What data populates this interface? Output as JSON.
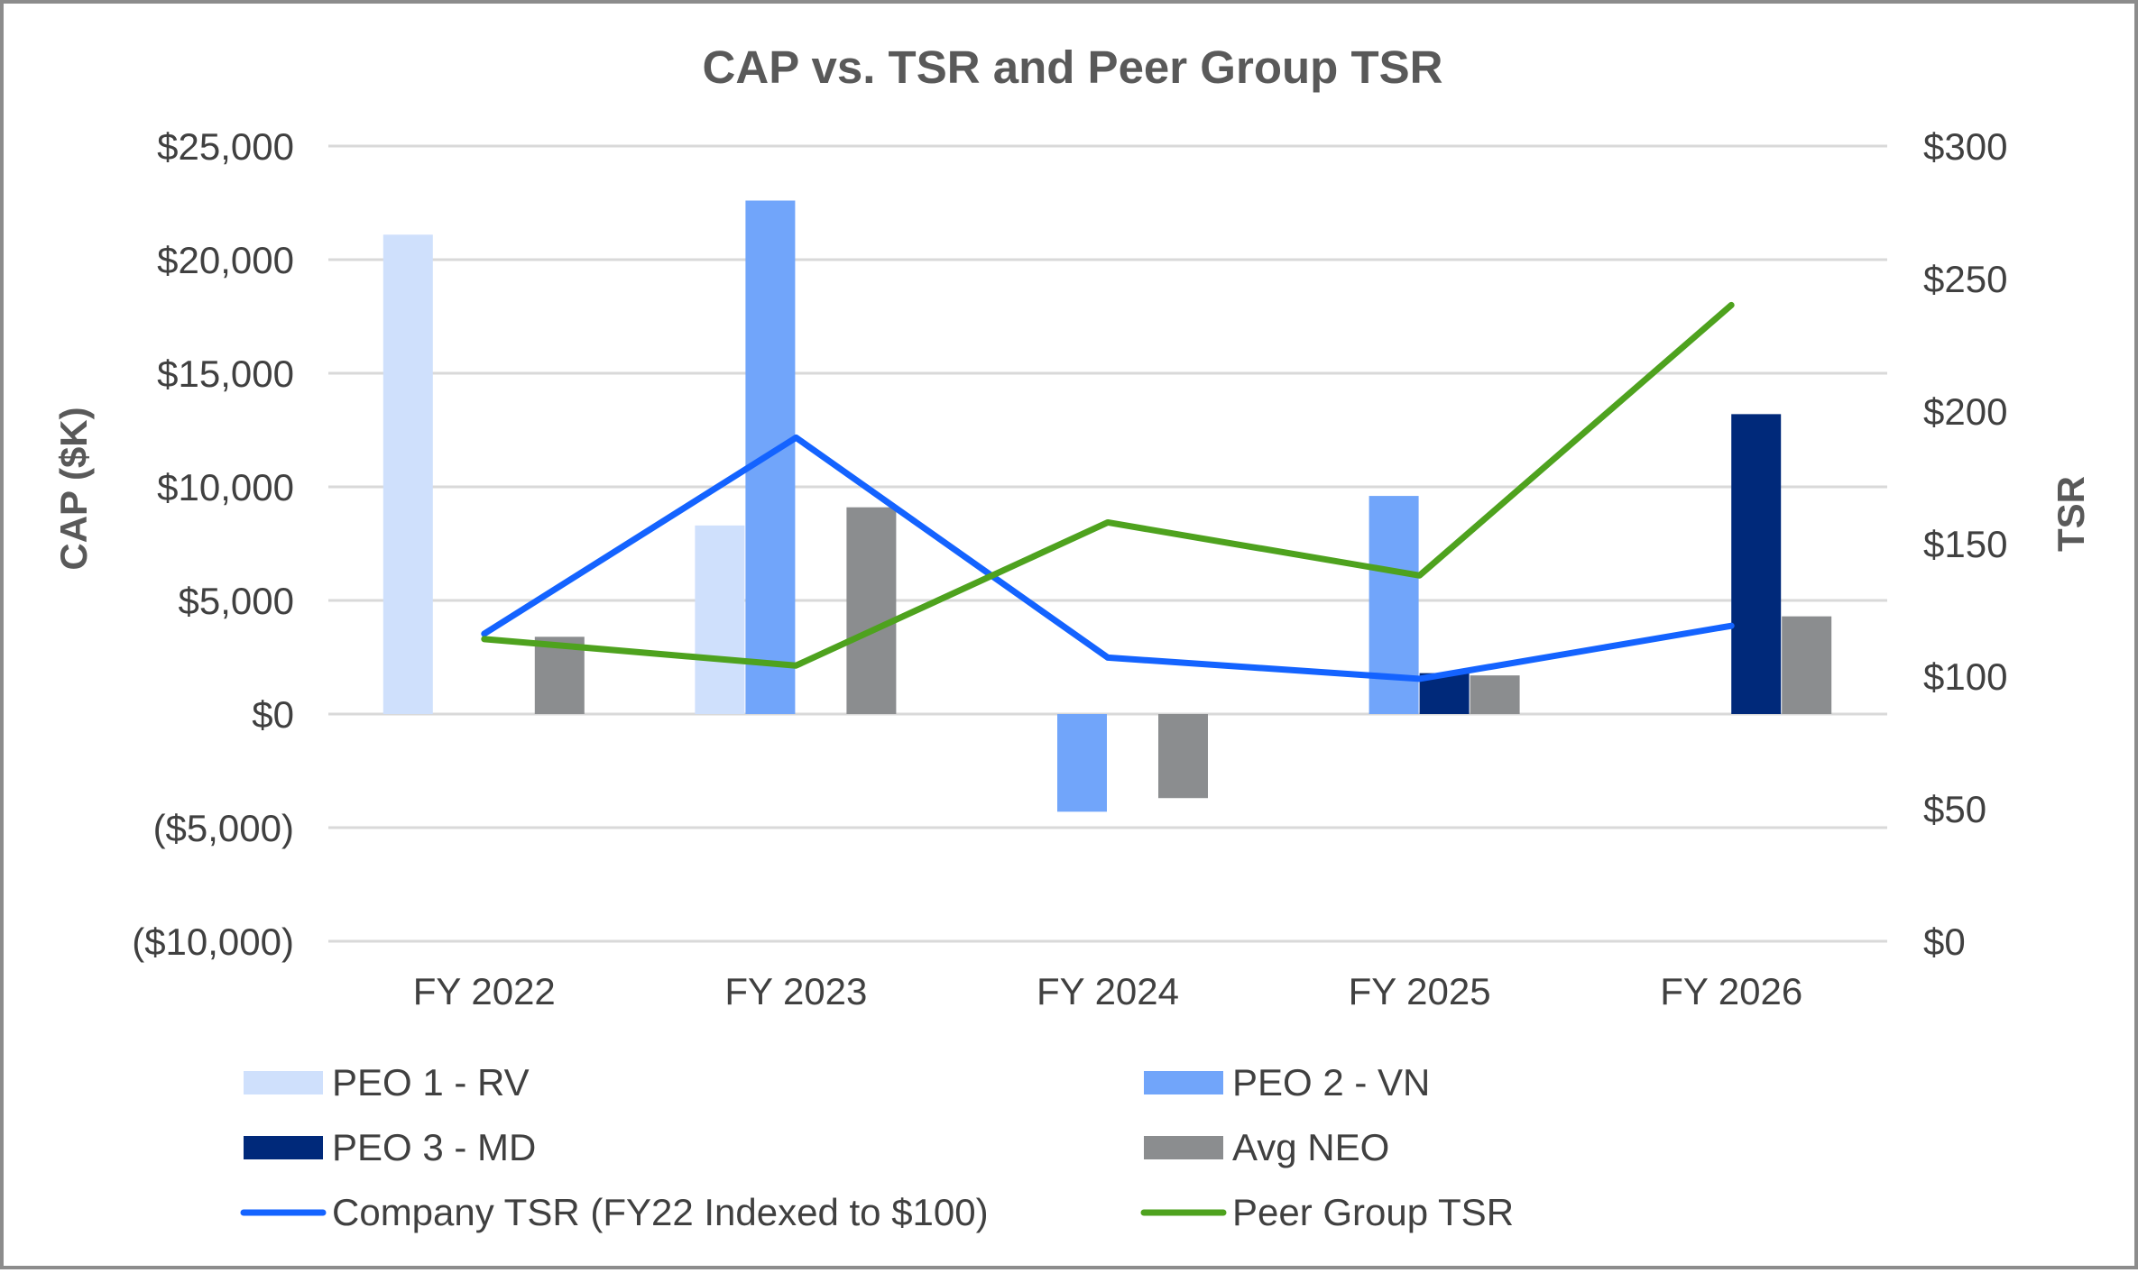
{
  "chart_data": {
    "type": "bar",
    "title": "CAP vs. TSR and Peer Group TSR",
    "categories": [
      "FY 2022",
      "FY 2023",
      "FY 2024",
      "FY 2025",
      "FY 2026"
    ],
    "y_left": {
      "label": "CAP ($K)",
      "range": [
        -10000,
        25000
      ],
      "ticks": [
        25000,
        20000,
        15000,
        10000,
        5000,
        0,
        -5000,
        -10000
      ],
      "tick_labels": [
        "$25,000",
        "$20,000",
        "$15,000",
        "$10,000",
        "$5,000",
        "$0",
        "($5,000)",
        "($10,000)"
      ]
    },
    "y_right": {
      "label": "TSR",
      "range": [
        0,
        300
      ],
      "ticks": [
        300,
        250,
        200,
        150,
        100,
        50,
        0
      ],
      "tick_labels": [
        "$300",
        "$250",
        "$200",
        "$150",
        "$100",
        "$50",
        "$0"
      ]
    },
    "grid": true,
    "legend_position": "bottom",
    "bar_series": [
      {
        "name": "PEO 1 - RV",
        "color": "#cfe0fc",
        "values": [
          21100,
          8300,
          null,
          null,
          null
        ]
      },
      {
        "name": "PEO 2 - VN",
        "color": "#71a5fa",
        "values": [
          null,
          22600,
          -4300,
          9600,
          null
        ]
      },
      {
        "name": "PEO 3 - MD",
        "color": "#00297a",
        "values": [
          null,
          null,
          null,
          1800,
          13200
        ]
      },
      {
        "name": "Avg NEO",
        "color": "#8b8d8f",
        "values": [
          3400,
          9100,
          -3700,
          1700,
          4300
        ]
      }
    ],
    "line_series": [
      {
        "name": "Company TSR (FY22 Indexed to $100)",
        "color": "#1463ff",
        "axis": "right",
        "values": [
          116,
          190,
          107,
          99,
          119
        ]
      },
      {
        "name": "Peer Group TSR",
        "color": "#4ea21e",
        "axis": "right",
        "values": [
          114,
          104,
          158,
          138,
          240
        ]
      }
    ]
  }
}
